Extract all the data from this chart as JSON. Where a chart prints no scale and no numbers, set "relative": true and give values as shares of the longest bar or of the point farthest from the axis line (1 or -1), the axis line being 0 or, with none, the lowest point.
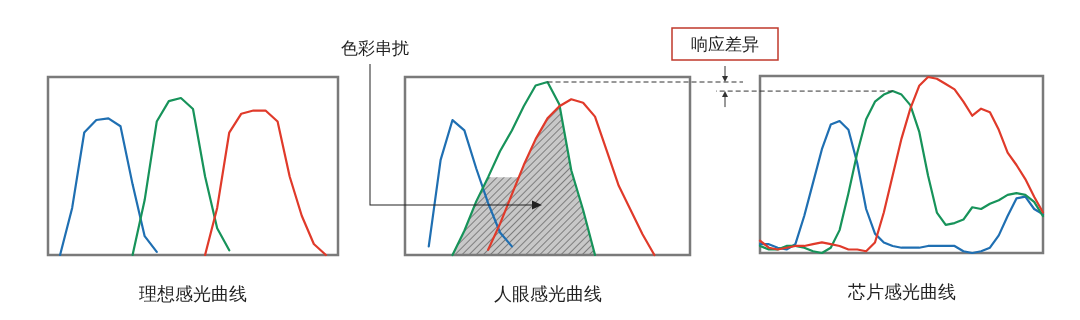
{
  "chart_data": [
    {
      "type": "line",
      "relative": true,
      "xlabel": "理想感光曲线",
      "categories": [
        null,
        null,
        null,
        null,
        null,
        null,
        null,
        null,
        null,
        null,
        null,
        null,
        null,
        null,
        null,
        null,
        null,
        null,
        null,
        null,
        null,
        null,
        null,
        null,
        null
      ],
      "series": [
        {
          "color": "#1f6fb2",
          "values": [
            null,
            0,
            0.3,
            0.78,
            0.86,
            0.87,
            0.82,
            0.45,
            0.12,
            0.02,
            null,
            null,
            null,
            null,
            null,
            null,
            null,
            null,
            null,
            null,
            null,
            null,
            null,
            null,
            null
          ]
        },
        {
          "color": "#17935a",
          "values": [
            null,
            null,
            null,
            null,
            null,
            null,
            null,
            0,
            0.35,
            0.85,
            0.98,
            1.0,
            0.93,
            0.5,
            0.17,
            0.03,
            null,
            null,
            null,
            null,
            null,
            null,
            null,
            null,
            null
          ]
        },
        {
          "color": "#e03a2a",
          "values": [
            null,
            null,
            null,
            null,
            null,
            null,
            null,
            null,
            null,
            null,
            null,
            null,
            null,
            0,
            0.3,
            0.78,
            0.9,
            0.92,
            0.92,
            0.85,
            0.5,
            0.25,
            0.07,
            0,
            null
          ]
        }
      ]
    },
    {
      "type": "line",
      "relative": true,
      "xlabel": "人眼感光曲线",
      "annotations": [
        "色彩串扰",
        "响应差异"
      ],
      "ref_lines": [
        {
          "axis": "y",
          "value": 1.0,
          "line_style": "dashed",
          "color": "#333333"
        }
      ],
      "categories": [
        null,
        null,
        null,
        null,
        null,
        null,
        null,
        null,
        null,
        null,
        null,
        null,
        null,
        null,
        null,
        null,
        null,
        null,
        null,
        null,
        null,
        null,
        null,
        null,
        null
      ],
      "series": [
        {
          "color": "#1f6fb2",
          "values": [
            null,
            null,
            0.05,
            0.55,
            0.78,
            0.72,
            0.5,
            0.3,
            0.13,
            0.05,
            null,
            null,
            null,
            null,
            null,
            null,
            null,
            null,
            null,
            null,
            null,
            null,
            null,
            null,
            null
          ]
        },
        {
          "color": "#17935a",
          "values": [
            null,
            null,
            null,
            null,
            0,
            0.14,
            0.31,
            0.45,
            0.6,
            0.72,
            0.86,
            0.98,
            1.0,
            0.87,
            0.49,
            0.26,
            0,
            null,
            null,
            null,
            null,
            null,
            null,
            null,
            null
          ]
        },
        {
          "color": "#e03a2a",
          "values": [
            null,
            null,
            null,
            null,
            null,
            null,
            null,
            0.03,
            0.18,
            0.35,
            0.52,
            0.67,
            0.79,
            0.86,
            0.9,
            0.88,
            0.8,
            0.6,
            0.4,
            0.26,
            0.12,
            0,
            null,
            null,
            null
          ]
        }
      ]
    },
    {
      "type": "line",
      "relative": true,
      "xlabel": "芯片感光曲线",
      "ref_lines": [
        {
          "axis": "y",
          "value": 0.92,
          "line_style": "dashed",
          "color": "#333333"
        }
      ],
      "categories": [
        null,
        null,
        null,
        null,
        null,
        null,
        null,
        null,
        null,
        null,
        null,
        null,
        null,
        null,
        null,
        null,
        null,
        null,
        null,
        null,
        null,
        null,
        null,
        null,
        null,
        null,
        null,
        null,
        null,
        null,
        null,
        null,
        null
      ],
      "series": [
        {
          "color": "#1f6fb2",
          "values": [
            0.05,
            0.05,
            0.03,
            0.02,
            0.05,
            0.21,
            0.4,
            0.59,
            0.73,
            0.75,
            0.7,
            0.51,
            0.25,
            0.11,
            0.06,
            0.04,
            0.03,
            0.03,
            0.03,
            0.04,
            0.04,
            0.04,
            0.04,
            0.01,
            0,
            0.01,
            0.03,
            0.1,
            0.21,
            0.31,
            0.32,
            0.25,
            0.22
          ]
        },
        {
          "color": "#17935a",
          "values": [
            0.04,
            0.02,
            0.02,
            0.04,
            0.04,
            0.03,
            0.01,
            0,
            0.03,
            0.13,
            0.34,
            0.57,
            0.76,
            0.86,
            0.9,
            0.92,
            0.9,
            0.84,
            0.69,
            0.44,
            0.23,
            0.16,
            0.17,
            0.19,
            0.26,
            0.25,
            0.28,
            0.3,
            0.33,
            0.34,
            0.33,
            0.29,
            0.21
          ]
        },
        {
          "color": "#e03a2a",
          "values": [
            0.07,
            0.03,
            0.02,
            0.03,
            0.04,
            0.04,
            0.05,
            0.06,
            0.05,
            0.04,
            0.02,
            0.02,
            0.01,
            0.06,
            0.23,
            0.44,
            0.65,
            0.82,
            0.95,
            1.0,
            0.99,
            0.96,
            0.93,
            0.86,
            0.78,
            0.82,
            0.8,
            0.7,
            0.57,
            0.5,
            0.42,
            0.32,
            0.23
          ]
        }
      ]
    }
  ]
}
